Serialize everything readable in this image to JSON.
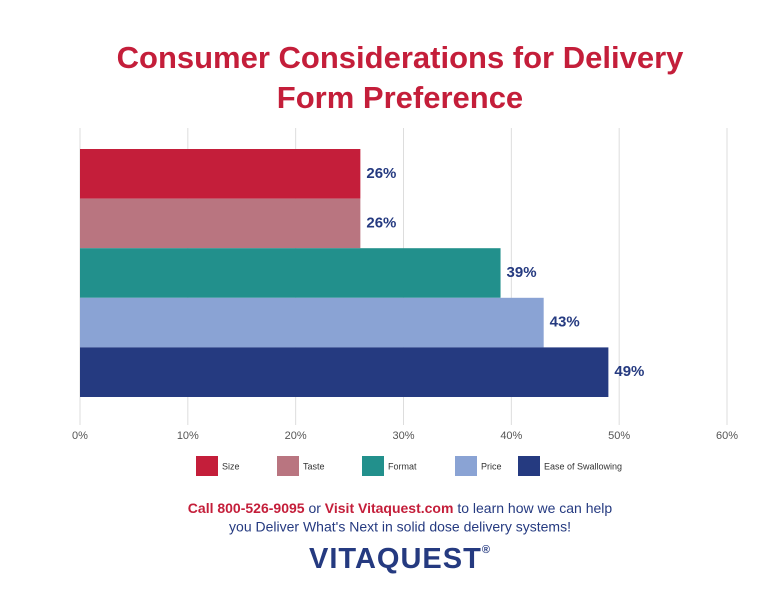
{
  "chart_data": {
    "type": "bar",
    "orientation": "horizontal",
    "title": "Consumer Considerations for Delivery",
    "subtitle": "Form Preference",
    "series": [
      {
        "name": "Size",
        "color": "#c41e3a",
        "values": [
          26
        ],
        "value_labels": [
          "26%"
        ]
      },
      {
        "name": "Taste",
        "color": "#b97580",
        "values": [
          26
        ],
        "value_labels": [
          "26%"
        ]
      },
      {
        "name": "Format",
        "color": "#22908c",
        "values": [
          39
        ],
        "value_labels": [
          "39%"
        ]
      },
      {
        "name": "Price",
        "color": "#8aa3d4",
        "values": [
          43
        ],
        "value_labels": [
          "43%"
        ]
      },
      {
        "name": "Ease of Swallowing",
        "color": "#253a80",
        "values": [
          49
        ],
        "value_labels": [
          "49%"
        ]
      }
    ],
    "xlim": [
      0,
      60
    ],
    "xticks": [
      {
        "value": 0,
        "label": "0%"
      },
      {
        "value": 10,
        "label": "10%"
      },
      {
        "value": 20,
        "label": "20%"
      },
      {
        "value": 30,
        "label": "30%"
      },
      {
        "value": 40,
        "label": "40%"
      },
      {
        "value": 50,
        "label": "50%"
      },
      {
        "value": 60,
        "label": "60%"
      }
    ],
    "grid": true,
    "legend": "bottom"
  },
  "footer": {
    "phone": "Call 800-526-9095",
    "or": "or",
    "site": "Visit Vitaquest.com",
    "rest1": "to learn how we can help",
    "line2": "you Deliver What's Next in solid dose delivery systems!",
    "logo": "VITAQUEST",
    "logo_mark": "®"
  }
}
